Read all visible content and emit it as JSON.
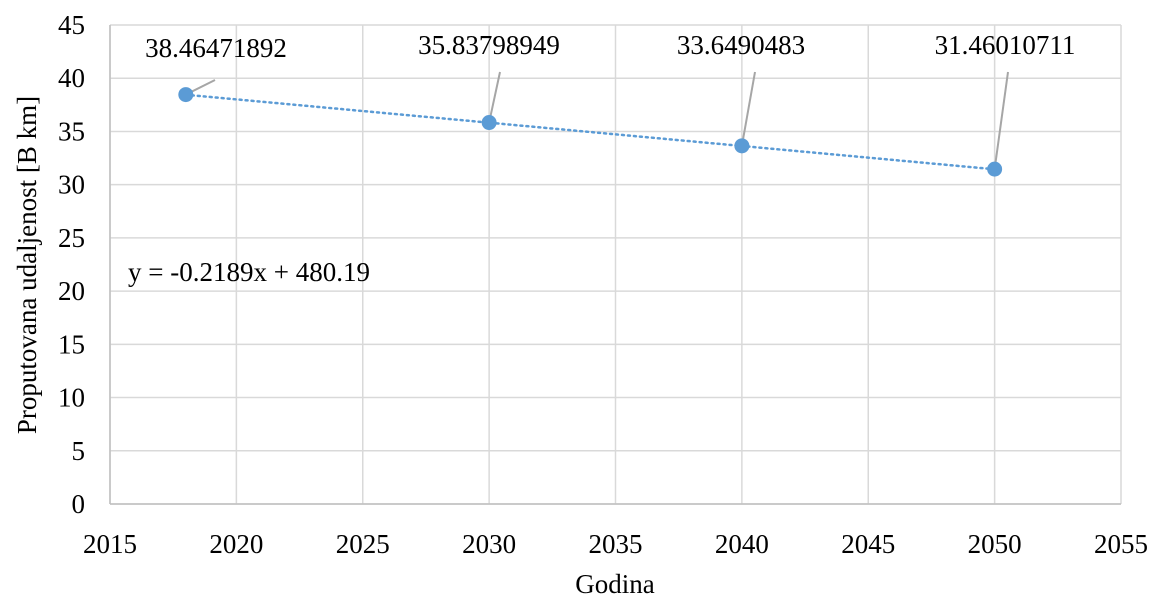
{
  "chart_data": {
    "type": "scatter",
    "title": "",
    "xlabel": "Godina",
    "ylabel": "Proputovana udaljenost [B km]",
    "xlim": [
      2015,
      2055
    ],
    "ylim": [
      0,
      45
    ],
    "x_ticks": [
      2015,
      2020,
      2025,
      2030,
      2035,
      2040,
      2045,
      2050,
      2055
    ],
    "y_ticks": [
      0,
      5,
      10,
      15,
      20,
      25,
      30,
      35,
      40,
      45
    ],
    "grid": true,
    "legend": "none",
    "points": [
      {
        "x": 2018,
        "y": 38.46471892,
        "label": "38.46471892"
      },
      {
        "x": 2030,
        "y": 35.83798949,
        "label": "35.83798949"
      },
      {
        "x": 2040,
        "y": 33.6490483,
        "label": "33.6490483"
      },
      {
        "x": 2050,
        "y": 31.46010711,
        "label": "31.46010711"
      }
    ],
    "trendline": {
      "type": "linear",
      "slope": -0.2189,
      "intercept": 480.19,
      "equation": "y = -0.2189x + 480.19",
      "style": "dotted"
    },
    "colors": {
      "marker": "#5B9BD5",
      "trendline": "#5B9BD5",
      "grid": "#D9D9D9",
      "axis": "#BFBFBF",
      "leader": "#A6A6A6"
    }
  }
}
